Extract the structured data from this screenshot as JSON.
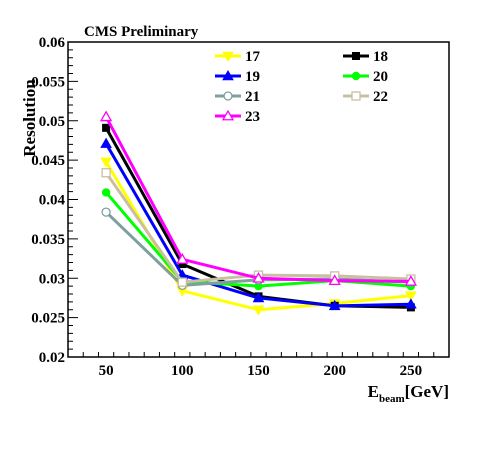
{
  "chart_data": {
    "type": "line",
    "title": "CMS Preliminary",
    "ylabel": "Resolution",
    "xlabel_main": "E",
    "xlabel_sub": "beam",
    "xlabel_unit": "[GeV]",
    "x": [
      50,
      100,
      150,
      200,
      250
    ],
    "xlim": [
      25,
      275
    ],
    "ylim": [
      0.02,
      0.06
    ],
    "xticks": [
      50,
      100,
      150,
      200,
      250
    ],
    "xtick_labels": [
      "50",
      "100",
      "150",
      "200",
      "250"
    ],
    "yticks": [
      0.02,
      0.025,
      0.03,
      0.035,
      0.04,
      0.045,
      0.05,
      0.055,
      0.06
    ],
    "ytick_labels": [
      "0.02",
      "0.025",
      "0.03",
      "0.035",
      "0.04",
      "0.045",
      "0.05",
      "0.055",
      "0.06"
    ],
    "grid": false,
    "legend_position": "top-right",
    "series": [
      {
        "name": "17",
        "color": "#ffff00",
        "marker": "triangle-down-filled",
        "values": [
          0.0448,
          0.0284,
          0.026,
          0.0268,
          0.0278
        ]
      },
      {
        "name": "18",
        "color": "#000000",
        "marker": "square-filled",
        "values": [
          0.0491,
          0.0318,
          0.0277,
          0.0265,
          0.0263
        ]
      },
      {
        "name": "19",
        "color": "#0000ff",
        "marker": "triangle-up-filled",
        "values": [
          0.0471,
          0.0304,
          0.0275,
          0.0265,
          0.0267
        ]
      },
      {
        "name": "20",
        "color": "#00ff00",
        "marker": "circle-filled",
        "values": [
          0.0409,
          0.0296,
          0.029,
          0.0297,
          0.029
        ]
      },
      {
        "name": "21",
        "color": "#7f9f9f",
        "marker": "circle-open",
        "values": [
          0.0384,
          0.0291,
          0.0298,
          0.0299,
          0.0295
        ]
      },
      {
        "name": "22",
        "color": "#c8c0a0",
        "marker": "square-open",
        "values": [
          0.0434,
          0.0295,
          0.0304,
          0.0303,
          0.0299
        ]
      },
      {
        "name": "23",
        "color": "#ff00ff",
        "marker": "triangle-up-open",
        "values": [
          0.0505,
          0.0324,
          0.03,
          0.0297,
          0.0296
        ]
      }
    ]
  }
}
